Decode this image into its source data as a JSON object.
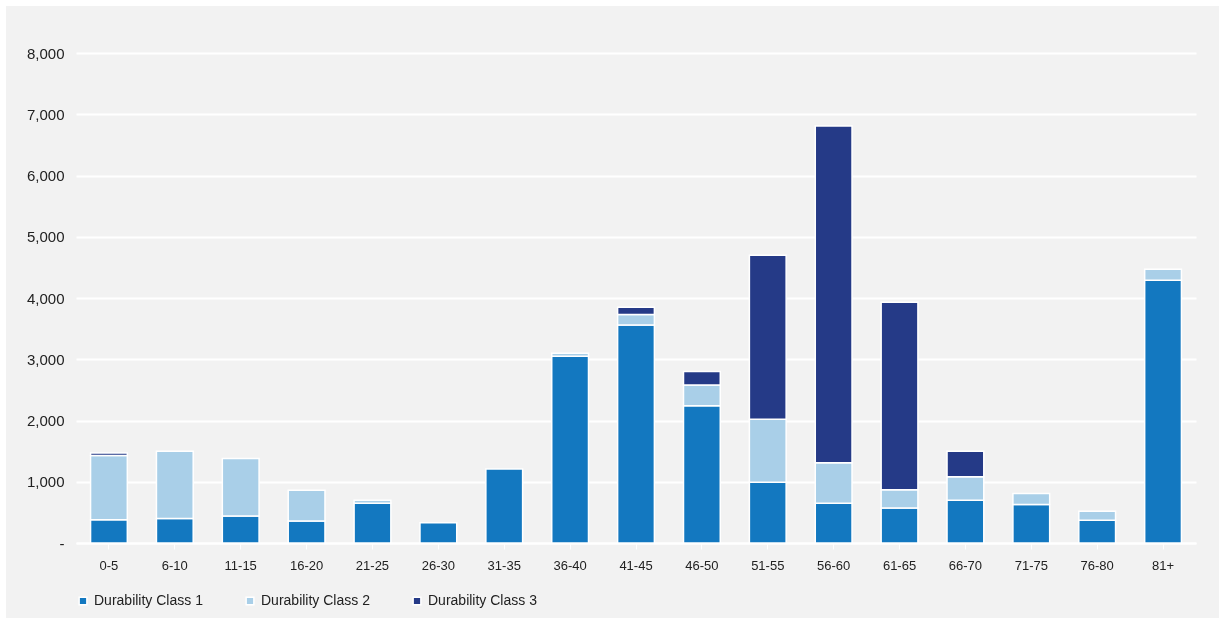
{
  "chart_data": {
    "type": "bar",
    "stacked": true,
    "categories": [
      "0-5",
      "6-10",
      "11-15",
      "16-20",
      "21-25",
      "26-30",
      "31-35",
      "36-40",
      "41-45",
      "46-50",
      "51-55",
      "56-60",
      "61-65",
      "66-70",
      "71-75",
      "76-80",
      "81+"
    ],
    "series": [
      {
        "name": "Durability Class 1",
        "color": "#1378c0",
        "values": [
          380,
          400,
          440,
          360,
          650,
          330,
          1210,
          3050,
          3560,
          2240,
          990,
          650,
          570,
          700,
          630,
          370,
          4290
        ]
      },
      {
        "name": "Durability Class 2",
        "color": "#a9cfe8",
        "values": [
          1050,
          1100,
          940,
          500,
          50,
          null,
          null,
          50,
          170,
          340,
          1030,
          660,
          300,
          380,
          180,
          150,
          180
        ]
      },
      {
        "name": "Durability Class 3",
        "color": "#253a87",
        "values": [
          40,
          null,
          null,
          null,
          null,
          null,
          null,
          null,
          120,
          220,
          2680,
          5500,
          3060,
          420,
          null,
          null,
          null
        ]
      }
    ],
    "ylim": [
      0,
      8000
    ],
    "yticks": [
      {
        "value": 0,
        "label": "-"
      },
      {
        "value": 1000,
        "label": "1,000"
      },
      {
        "value": 2000,
        "label": "2,000"
      },
      {
        "value": 3000,
        "label": "3,000"
      },
      {
        "value": 4000,
        "label": "4,000"
      },
      {
        "value": 5000,
        "label": "5,000"
      },
      {
        "value": 6000,
        "label": "6,000"
      },
      {
        "value": 7000,
        "label": "7,000"
      },
      {
        "value": 8000,
        "label": "8,000"
      }
    ],
    "grid": "y",
    "legend": "bottom"
  }
}
